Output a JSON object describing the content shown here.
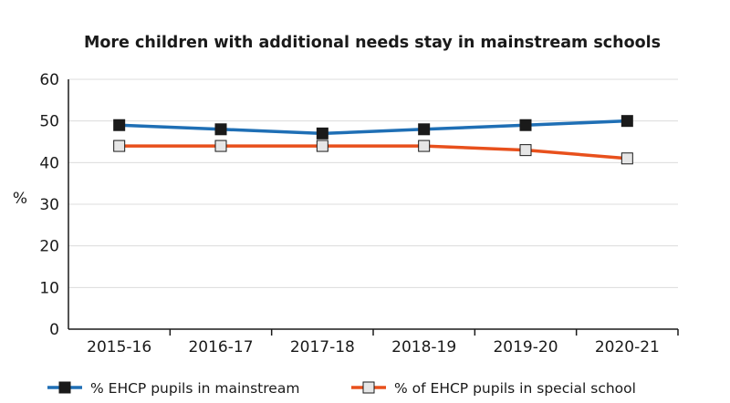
{
  "chart_data": {
    "type": "line",
    "title": "More children with additional needs stay in mainstream schools",
    "xlabel": "",
    "ylabel": "%",
    "categories": [
      "2015-16",
      "2016-17",
      "2017-18",
      "2018-19",
      "2019-20",
      "2020-21"
    ],
    "ylim": [
      0,
      60
    ],
    "yticks": [
      0,
      10,
      20,
      30,
      40,
      50,
      60
    ],
    "grid": true,
    "legend": "bottom",
    "series": [
      {
        "name": "% EHCP pupils in mainstream",
        "values": [
          49,
          48,
          47,
          48,
          49,
          50
        ],
        "line_color": "#1f6fb5",
        "marker_fill": "#1a1a1a"
      },
      {
        "name": "% of EHCP pupils in special school",
        "values": [
          44,
          44,
          44,
          44,
          43,
          41
        ],
        "line_color": "#e8501c",
        "marker_fill": "#e6e6e6"
      }
    ]
  }
}
